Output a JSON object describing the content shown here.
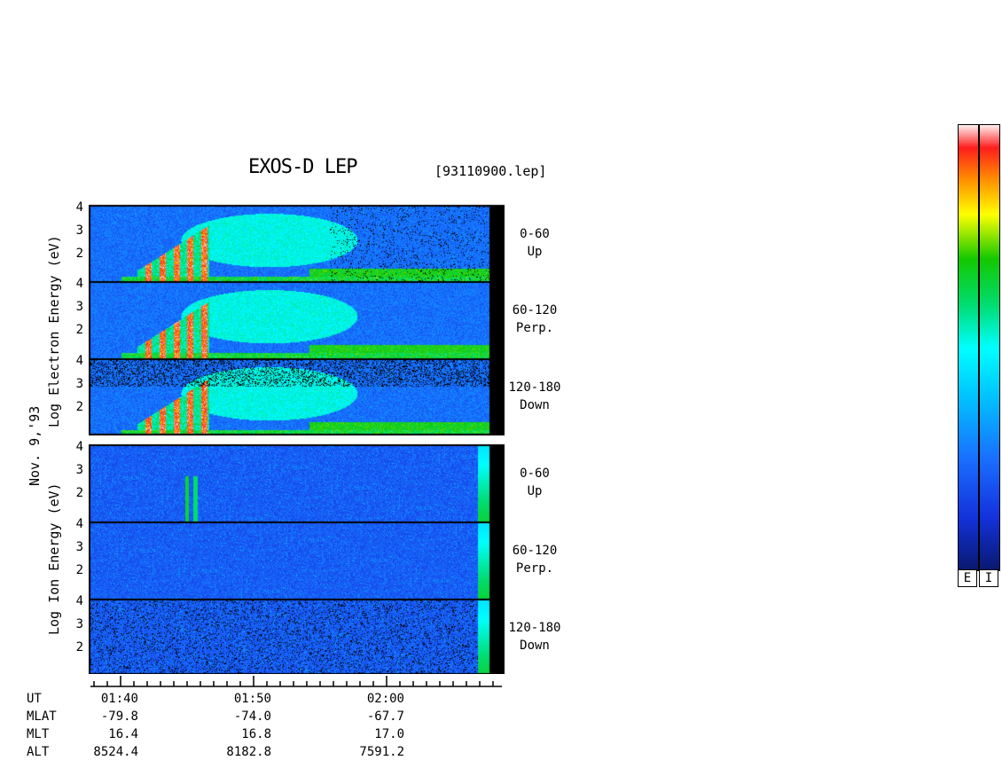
{
  "title": "EXOS-D LEP",
  "filename": "[93110900.lep]",
  "date_label": "Nov. 9,'93",
  "electron_axis_label": "Log  Electron  Energy (eV)",
  "ion_axis_label": "Log  Ion  Energy (eV)",
  "panels": [
    {
      "group": "Electron",
      "range": "0-60",
      "dir": "Up"
    },
    {
      "group": "Electron",
      "range": "60-120",
      "dir": "Perp."
    },
    {
      "group": "Electron",
      "range": "120-180",
      "dir": "Down"
    },
    {
      "group": "Ion",
      "range": "0-60",
      "dir": "Up"
    },
    {
      "group": "Ion",
      "range": "60-120",
      "dir": "Perp."
    },
    {
      "group": "Ion",
      "range": "120-180",
      "dir": "Down"
    }
  ],
  "y_ticks": [
    "4",
    "3",
    "2"
  ],
  "footer": {
    "rows": [
      {
        "label": "UT",
        "values": [
          "01:40",
          "01:50",
          "02:00"
        ]
      },
      {
        "label": "MLAT",
        "values": [
          "-79.8",
          "-74.0",
          "-67.7"
        ]
      },
      {
        "label": "MLT",
        "values": [
          "16.4",
          "16.8",
          "17.0"
        ]
      },
      {
        "label": "ALT",
        "values": [
          "8524.4",
          "8182.8",
          "7591.2"
        ]
      }
    ]
  },
  "colorbars": [
    {
      "label": "E"
    },
    {
      "label": "I"
    }
  ],
  "chart_data": {
    "type": "heatmap",
    "title": "EXOS-D LEP",
    "x": {
      "label": "UT",
      "ticks": [
        "01:40",
        "01:50",
        "02:00"
      ]
    },
    "y": {
      "label": "Log Energy (eV)",
      "ticks": [
        2,
        3,
        4
      ],
      "range": [
        1,
        4
      ]
    },
    "channels": [
      "Electron 0-60 Up",
      "Electron 60-120 Perp.",
      "Electron 120-180 Down",
      "Ion 0-60 Up",
      "Ion 60-120 Perp.",
      "Ion 120-180 Down"
    ],
    "colormap": [
      "#0a1f78",
      "#1a3cff",
      "#00b4ff",
      "#00ffff",
      "#00e070",
      "#30c800",
      "#ffff00",
      "#ff9900",
      "#ff2020",
      "#ffffff"
    ],
    "grid": false
  }
}
